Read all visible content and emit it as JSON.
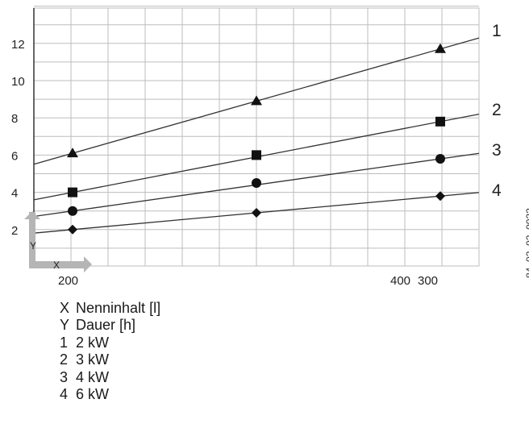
{
  "chart_data": {
    "type": "line",
    "title": "",
    "xlabel": "X",
    "ylabel": "Y",
    "x_ticks": [
      "200",
      "400",
      "300"
    ],
    "y_ticks": [
      "2",
      "4",
      "6",
      "8",
      "10",
      "12"
    ],
    "ylim": [
      0,
      14
    ],
    "grid": true,
    "legend": "right-labels",
    "series": [
      {
        "name": "1",
        "marker": "triangle",
        "points": [
          {
            "x": 200,
            "y": 6.1
          },
          {
            "x": 300,
            "y": 8.9
          },
          {
            "x": 400,
            "y": 11.7
          }
        ]
      },
      {
        "name": "2",
        "marker": "square",
        "points": [
          {
            "x": 200,
            "y": 4.0
          },
          {
            "x": 300,
            "y": 6.0
          },
          {
            "x": 400,
            "y": 7.8
          }
        ]
      },
      {
        "name": "3",
        "marker": "circle",
        "points": [
          {
            "x": 200,
            "y": 3.0
          },
          {
            "x": 300,
            "y": 4.5
          },
          {
            "x": 400,
            "y": 5.8
          }
        ]
      },
      {
        "name": "4",
        "marker": "diamond",
        "points": [
          {
            "x": 200,
            "y": 2.0
          },
          {
            "x": 300,
            "y": 2.9
          },
          {
            "x": 400,
            "y": 3.8
          }
        ]
      }
    ]
  },
  "legend": [
    {
      "key": "X",
      "text": "Nenninhalt [l]"
    },
    {
      "key": "Y",
      "text": "Dauer [h]"
    },
    {
      "key": "1",
      "text": "2 kW"
    },
    {
      "key": "2",
      "text": "3 kW"
    },
    {
      "key": "3",
      "text": "4 kW"
    },
    {
      "key": "4",
      "text": "6 kW"
    }
  ],
  "figure_id": "84_02_02_0022",
  "colors": {
    "line": "#333333",
    "grid": "#bdbdbd",
    "axis_corner": "#b5b5b5"
  }
}
